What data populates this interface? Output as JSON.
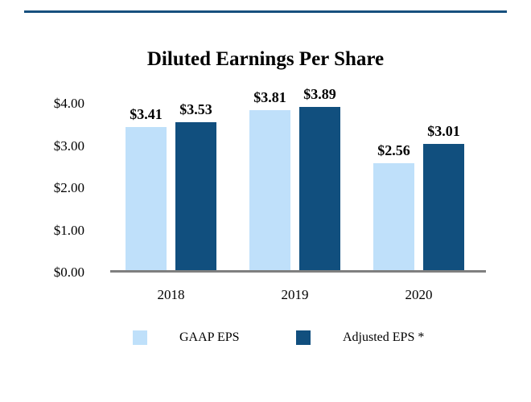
{
  "divider": {
    "color": "#17507E"
  },
  "chart_data": {
    "type": "bar",
    "title": "Diluted Earnings Per Share",
    "categories": [
      "2018",
      "2019",
      "2020"
    ],
    "series": [
      {
        "name": "GAAP EPS",
        "color": "#BFE0FA",
        "values": [
          3.41,
          3.81,
          2.56
        ],
        "labels": [
          "$3.41",
          "$3.81",
          "$2.56"
        ]
      },
      {
        "name": "Adjusted EPS *",
        "color": "#114F7E",
        "values": [
          3.53,
          3.89,
          3.01
        ],
        "labels": [
          "$3.53",
          "$3.89",
          "$3.01"
        ]
      }
    ],
    "xlabel": "",
    "ylabel": "",
    "ylim": [
      0,
      4
    ],
    "y_ticks": [
      {
        "label": "$0.00",
        "value": 0
      },
      {
        "label": "$1.00",
        "value": 1
      },
      {
        "label": "$2.00",
        "value": 2
      },
      {
        "label": "$3.00",
        "value": 3
      },
      {
        "label": "$4.00",
        "value": 4
      }
    ],
    "grid": false,
    "legend_position": "bottom",
    "axis_color": "#7F7F7F",
    "text_color": "#000000"
  }
}
